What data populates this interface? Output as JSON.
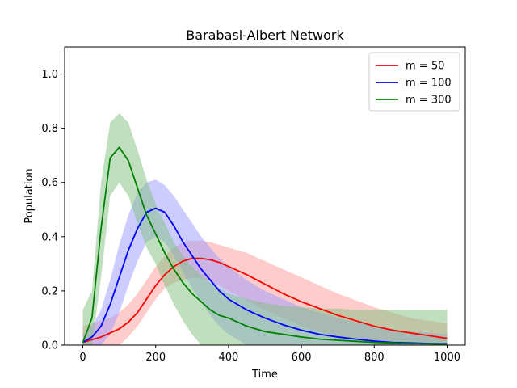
{
  "chart_data": {
    "type": "line",
    "title": "Barabasi-Albert Network",
    "xlabel": "Time",
    "ylabel": "Population",
    "xlim": [
      -50,
      1050
    ],
    "ylim": [
      0,
      1.1
    ],
    "xticks": [
      0,
      200,
      400,
      600,
      800,
      1000
    ],
    "xtick_labels": [
      "0",
      "200",
      "400",
      "600",
      "800",
      "1000"
    ],
    "yticks": [
      0.0,
      0.2,
      0.4,
      0.6,
      0.8,
      1.0
    ],
    "ytick_labels": [
      "0.0",
      "0.2",
      "0.4",
      "0.6",
      "0.8",
      "1.0"
    ],
    "grid": false,
    "legend_position": "top-right",
    "x": [
      0,
      25,
      50,
      75,
      100,
      125,
      150,
      175,
      200,
      225,
      250,
      275,
      300,
      325,
      350,
      375,
      400,
      450,
      500,
      550,
      600,
      650,
      700,
      750,
      800,
      850,
      900,
      950,
      1000
    ],
    "series": [
      {
        "name": "m = 50",
        "color": "#ff0000",
        "band_color": "#ff9999",
        "mean": [
          0.01,
          0.02,
          0.03,
          0.045,
          0.06,
          0.085,
          0.12,
          0.17,
          0.22,
          0.26,
          0.29,
          0.31,
          0.32,
          0.32,
          0.315,
          0.305,
          0.29,
          0.26,
          0.225,
          0.19,
          0.16,
          0.135,
          0.11,
          0.09,
          0.07,
          0.055,
          0.045,
          0.035,
          0.025
        ],
        "lower": [
          0.0,
          0.0,
          0.0,
          0.0,
          0.0,
          0.03,
          0.07,
          0.12,
          0.17,
          0.21,
          0.23,
          0.24,
          0.25,
          0.245,
          0.235,
          0.22,
          0.2,
          0.165,
          0.13,
          0.1,
          0.07,
          0.05,
          0.03,
          0.02,
          0.01,
          0.005,
          0.0,
          0.0,
          0.0
        ],
        "upper": [
          0.07,
          0.08,
          0.09,
          0.1,
          0.12,
          0.15,
          0.19,
          0.24,
          0.29,
          0.33,
          0.36,
          0.38,
          0.385,
          0.385,
          0.38,
          0.37,
          0.36,
          0.34,
          0.31,
          0.28,
          0.25,
          0.22,
          0.19,
          0.165,
          0.14,
          0.12,
          0.1,
          0.09,
          0.08
        ]
      },
      {
        "name": "m = 100",
        "color": "#0000ff",
        "band_color": "#9999ff",
        "mean": [
          0.01,
          0.03,
          0.07,
          0.15,
          0.25,
          0.35,
          0.43,
          0.49,
          0.505,
          0.49,
          0.44,
          0.38,
          0.33,
          0.28,
          0.24,
          0.2,
          0.17,
          0.13,
          0.1,
          0.075,
          0.055,
          0.04,
          0.03,
          0.022,
          0.015,
          0.01,
          0.008,
          0.006,
          0.005
        ],
        "lower": [
          0.0,
          0.0,
          0.0,
          0.04,
          0.12,
          0.22,
          0.31,
          0.38,
          0.4,
          0.38,
          0.33,
          0.27,
          0.21,
          0.16,
          0.11,
          0.07,
          0.04,
          0.0,
          0.0,
          0.0,
          0.0,
          0.0,
          0.0,
          0.0,
          0.0,
          0.0,
          0.0,
          0.0,
          0.0
        ],
        "upper": [
          0.04,
          0.07,
          0.13,
          0.24,
          0.37,
          0.48,
          0.56,
          0.6,
          0.61,
          0.59,
          0.55,
          0.5,
          0.45,
          0.4,
          0.36,
          0.32,
          0.29,
          0.24,
          0.2,
          0.17,
          0.14,
          0.12,
          0.1,
          0.085,
          0.07,
          0.06,
          0.05,
          0.045,
          0.04
        ]
      },
      {
        "name": "m = 300",
        "color": "#008000",
        "band_color": "#80c080",
        "mean": [
          0.01,
          0.1,
          0.43,
          0.69,
          0.73,
          0.68,
          0.58,
          0.48,
          0.41,
          0.34,
          0.28,
          0.23,
          0.19,
          0.16,
          0.13,
          0.11,
          0.1,
          0.07,
          0.05,
          0.04,
          0.03,
          0.022,
          0.018,
          0.014,
          0.01,
          0.008,
          0.006,
          0.005,
          0.004
        ],
        "lower": [
          0.0,
          0.0,
          0.25,
          0.55,
          0.6,
          0.55,
          0.45,
          0.36,
          0.3,
          0.22,
          0.15,
          0.09,
          0.04,
          0.0,
          0.0,
          0.0,
          0.0,
          0.0,
          0.0,
          0.0,
          0.0,
          0.0,
          0.0,
          0.0,
          0.0,
          0.0,
          0.0,
          0.0,
          0.0
        ],
        "upper": [
          0.13,
          0.2,
          0.6,
          0.82,
          0.855,
          0.82,
          0.72,
          0.61,
          0.52,
          0.45,
          0.38,
          0.33,
          0.29,
          0.26,
          0.23,
          0.21,
          0.19,
          0.17,
          0.155,
          0.145,
          0.14,
          0.135,
          0.135,
          0.13,
          0.13,
          0.13,
          0.13,
          0.13,
          0.13
        ]
      }
    ]
  }
}
